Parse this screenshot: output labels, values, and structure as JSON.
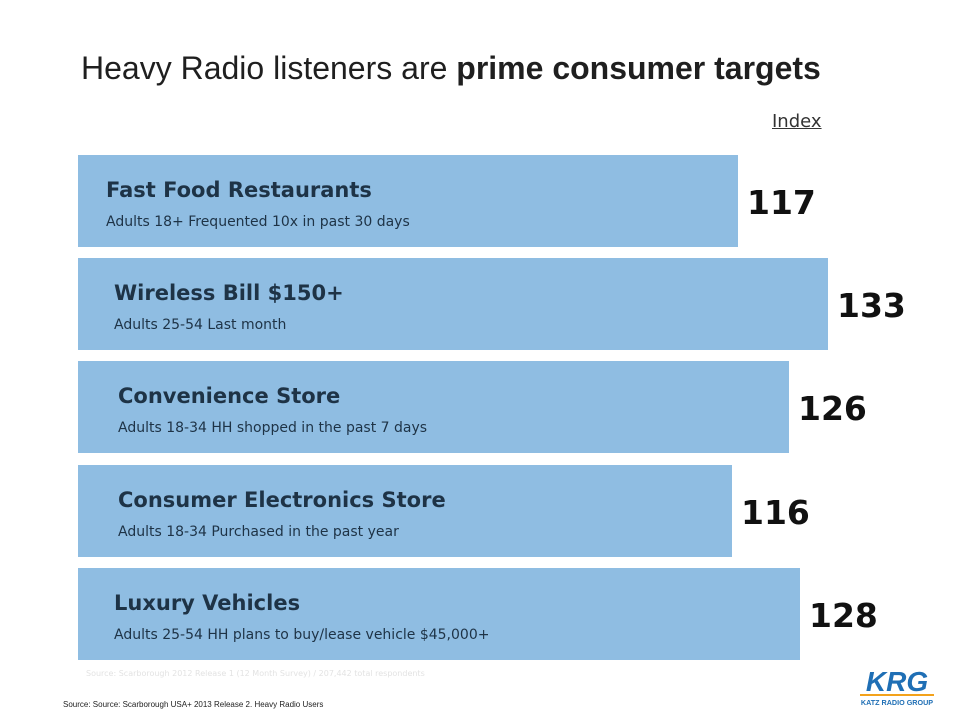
{
  "slide": {
    "title_regular": "Heavy Radio listeners are ",
    "title_bold": "prime consumer targets",
    "index_label": "Index",
    "faint_note": "Source: Scarborough 2012 Release 1 (12 Month Survey) / 207,442 total respondents",
    "source": "Source: Source: Scarborough USA+ 2013 Release 2. Heavy Radio Users",
    "logo_text": "KRG",
    "logo_subtext": "KATZ RADIO GROUP"
  },
  "colors": {
    "bar": "#8fbde2",
    "logo_blue": "#1f6fb5",
    "logo_orange": "#f3a21b"
  },
  "chart_data": {
    "type": "bar",
    "orientation": "horizontal",
    "title": "Heavy Radio listeners are prime consumer targets",
    "xlabel": "Index",
    "ylabel": "",
    "xlim": [
      0,
      140
    ],
    "grid": false,
    "legend": "none",
    "categories": [
      "Fast Food Restaurants",
      "Wireless Bill $150+",
      "Convenience Store",
      "Consumer Electronics Store",
      "Luxury Vehicles"
    ],
    "subtitles": [
      "Adults 18+ Frequented 10x in past 30 days",
      "Adults 25-54 Last month",
      "Adults 18-34 HH shopped in the past 7 days",
      "Adults 18-34 Purchased in the past year",
      "Adults 25-54 HH plans to buy/lease vehicle $45,000+"
    ],
    "values": [
      117,
      133,
      126,
      116,
      128
    ]
  }
}
